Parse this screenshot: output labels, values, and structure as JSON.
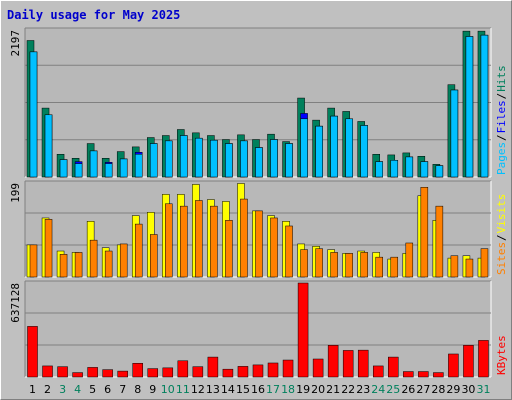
{
  "title": "Daily usage for May 2025",
  "colors": {
    "hits": "#00805c",
    "files": "#0000ff",
    "pages": "#00c0ff",
    "visits": "#ffff00",
    "sites": "#ff8000",
    "kbytes": "#ff0000",
    "weekend_label": "#00805c",
    "separator": "#000000"
  },
  "chart_data": [
    {
      "type": "bar",
      "title": "",
      "scale_label": "2197",
      "legend": [
        "Pages",
        "/",
        "Files",
        "/",
        "Hits"
      ],
      "categories": [
        "1",
        "2",
        "3",
        "4",
        "5",
        "6",
        "7",
        "8",
        "9",
        "10",
        "11",
        "12",
        "13",
        "14",
        "15",
        "16",
        "17",
        "18",
        "19",
        "20",
        "21",
        "22",
        "23",
        "24",
        "25",
        "26",
        "27",
        "28",
        "29",
        "30",
        "31"
      ],
      "weekend_days": [
        "3",
        "4",
        "10",
        "11",
        "17",
        "18",
        "24",
        "25",
        "31"
      ],
      "ylim": [
        0,
        2197
      ],
      "series": [
        {
          "name": "Hits",
          "values": [
            2040,
            1030,
            340,
            280,
            500,
            280,
            380,
            450,
            590,
            620,
            710,
            660,
            620,
            560,
            630,
            560,
            640,
            530,
            1180,
            850,
            1030,
            980,
            830,
            340,
            330,
            360,
            310,
            190,
            1380,
            2180,
            2180
          ]
        },
        {
          "name": "Files",
          "values": [
            1870,
            930,
            260,
            230,
            390,
            220,
            270,
            370,
            500,
            540,
            620,
            580,
            550,
            500,
            540,
            440,
            560,
            500,
            950,
            760,
            910,
            870,
            770,
            230,
            250,
            300,
            230,
            170,
            1300,
            2100,
            2120
          ]
        },
        {
          "name": "Pages",
          "values": [
            1870,
            930,
            260,
            200,
            390,
            200,
            270,
            340,
            500,
            540,
            620,
            580,
            550,
            500,
            540,
            440,
            560,
            500,
            870,
            760,
            910,
            870,
            770,
            230,
            250,
            300,
            230,
            170,
            1300,
            2100,
            2120
          ]
        }
      ]
    },
    {
      "type": "bar",
      "title": "",
      "scale_label": "199",
      "legend": [
        "Sites",
        "/",
        "Visits"
      ],
      "categories": [
        "1",
        "2",
        "3",
        "4",
        "5",
        "6",
        "7",
        "8",
        "9",
        "10",
        "11",
        "12",
        "13",
        "14",
        "15",
        "16",
        "17",
        "18",
        "19",
        "20",
        "21",
        "22",
        "23",
        "24",
        "25",
        "26",
        "27",
        "28",
        "29",
        "30",
        "31"
      ],
      "ylim": [
        0,
        199
      ],
      "series": [
        {
          "name": "Visits",
          "values": [
            68,
            125,
            55,
            52,
            118,
            62,
            68,
            130,
            137,
            175,
            175,
            196,
            164,
            160,
            198,
            140,
            130,
            118,
            70,
            65,
            58,
            50,
            55,
            52,
            38,
            50,
            172,
            120,
            40,
            45,
            40
          ]
        },
        {
          "name": "Sites",
          "values": [
            68,
            122,
            48,
            52,
            78,
            55,
            70,
            112,
            90,
            155,
            150,
            162,
            150,
            120,
            165,
            140,
            125,
            108,
            58,
            60,
            52,
            50,
            52,
            42,
            42,
            72,
            190,
            150,
            45,
            38,
            60
          ]
        }
      ]
    },
    {
      "type": "bar",
      "title": "",
      "scale_label": "637128",
      "legend": [
        "KBytes"
      ],
      "categories": [
        "1",
        "2",
        "3",
        "4",
        "5",
        "6",
        "7",
        "8",
        "9",
        "10",
        "11",
        "12",
        "13",
        "14",
        "15",
        "16",
        "17",
        "18",
        "19",
        "20",
        "21",
        "22",
        "23",
        "24",
        "25",
        "26",
        "27",
        "28",
        "29",
        "30",
        "31"
      ],
      "ylim": [
        0,
        637128
      ],
      "series": [
        {
          "name": "KBytes",
          "values": [
            343000,
            75000,
            70000,
            30000,
            65000,
            50000,
            40000,
            93000,
            57000,
            62000,
            110000,
            70000,
            135000,
            53000,
            72000,
            82000,
            95000,
            115000,
            637000,
            122000,
            215000,
            180000,
            182000,
            75000,
            135000,
            37000,
            37000,
            30000,
            156000,
            215000,
            248000
          ]
        }
      ]
    }
  ]
}
